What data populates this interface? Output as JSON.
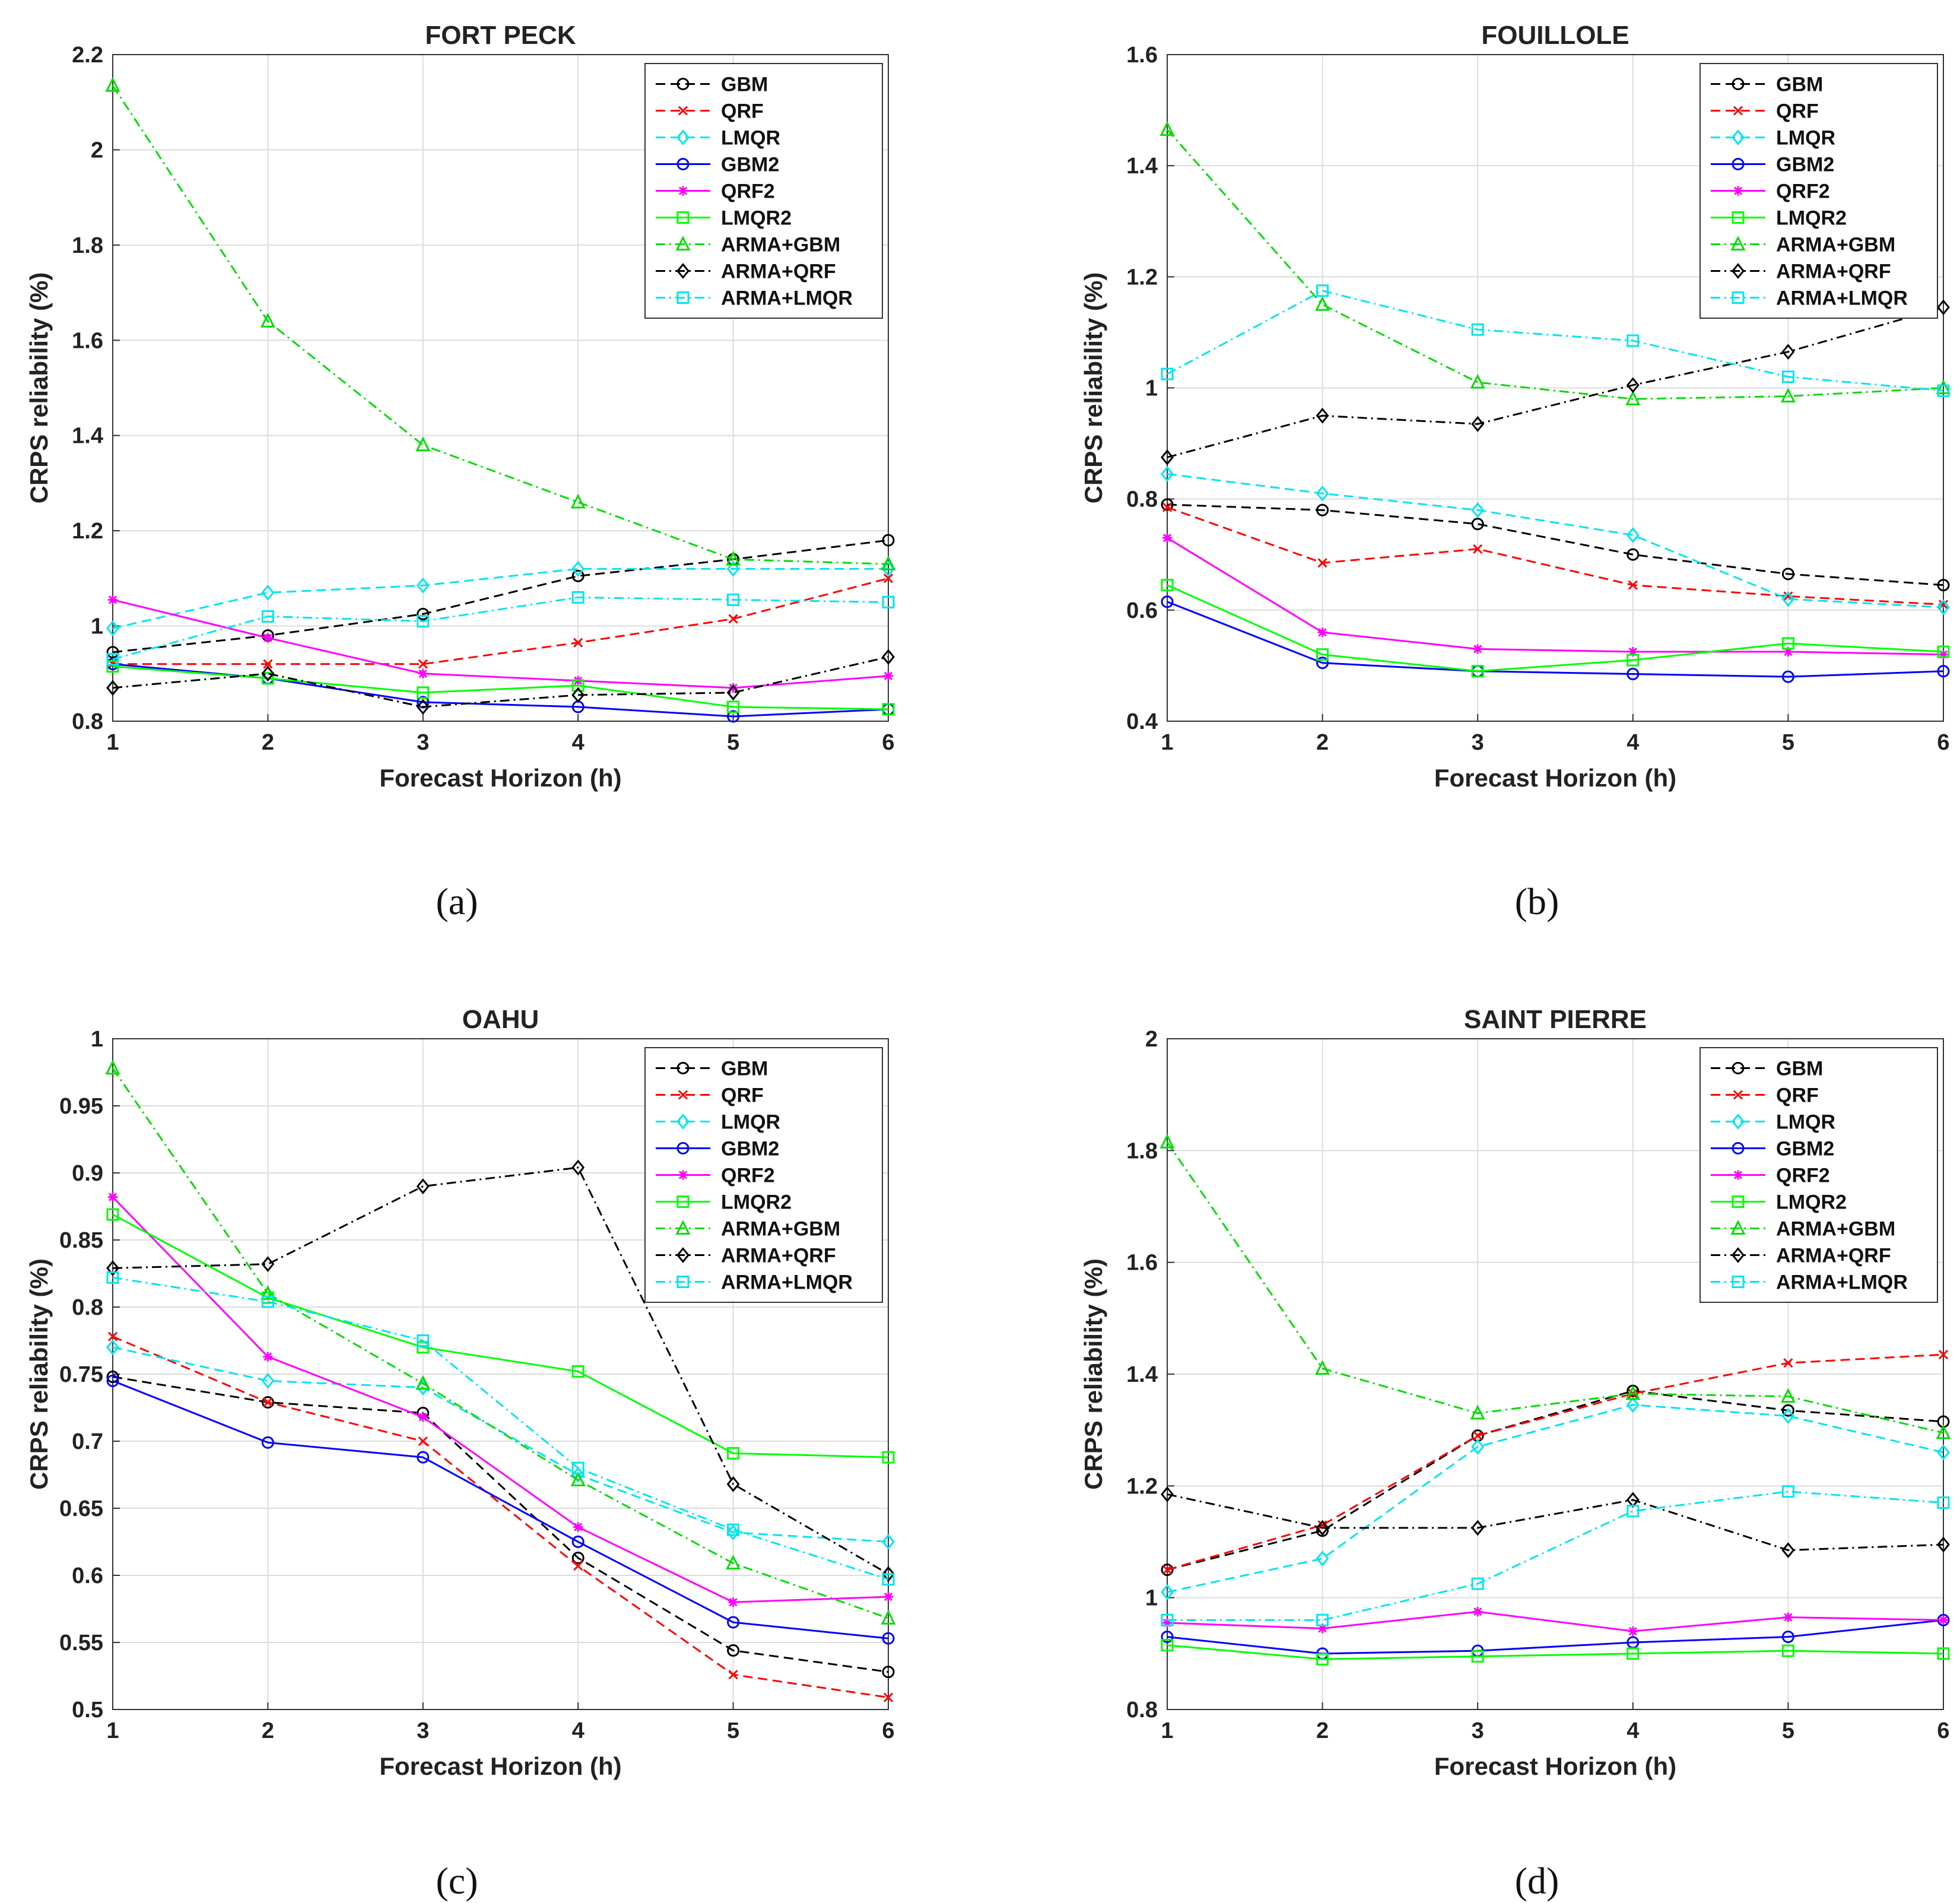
{
  "chart_data": [
    {
      "type": "line",
      "panel": "a",
      "title": "FORT PECK",
      "caption": "(a)",
      "xlabel": "Forecast Horizon (h)",
      "ylabel": "CRPS reliability (%)",
      "x": [
        1,
        2,
        3,
        4,
        5,
        6
      ],
      "xticks": [
        "1",
        "2",
        "3",
        "4",
        "5",
        "6"
      ],
      "ylim": [
        0.8,
        2.2
      ],
      "yticks": [
        "0.8",
        "1",
        "1.2",
        "1.4",
        "1.6",
        "1.8",
        "2",
        "2.2"
      ],
      "ytick_values": [
        0.8,
        1.0,
        1.2,
        1.4,
        1.6,
        1.8,
        2.0,
        2.2
      ],
      "legend_position": "top-right",
      "grid": true,
      "series": [
        {
          "name": "GBM",
          "color": "#000000",
          "dash": "dashed",
          "marker": "circle",
          "values": [
            0.945,
            0.98,
            1.025,
            1.105,
            1.14,
            1.18
          ]
        },
        {
          "name": "QRF",
          "color": "#ff0000",
          "dash": "dashed",
          "marker": "x",
          "values": [
            0.92,
            0.92,
            0.92,
            0.965,
            1.015,
            1.1
          ]
        },
        {
          "name": "LMQR",
          "color": "#00e5ee",
          "dash": "dashed",
          "marker": "diamond",
          "values": [
            0.995,
            1.07,
            1.085,
            1.12,
            1.12,
            1.12
          ]
        },
        {
          "name": "GBM2",
          "color": "#0000ff",
          "dash": "solid",
          "marker": "circle",
          "values": [
            0.92,
            0.89,
            0.84,
            0.83,
            0.81,
            0.825
          ]
        },
        {
          "name": "QRF2",
          "color": "#ff00ff",
          "dash": "solid",
          "marker": "asterisk",
          "values": [
            1.055,
            0.975,
            0.9,
            0.885,
            0.87,
            0.895
          ]
        },
        {
          "name": "LMQR2",
          "color": "#00ff00",
          "dash": "solid",
          "marker": "square",
          "values": [
            0.915,
            0.89,
            0.86,
            0.875,
            0.83,
            0.825
          ]
        },
        {
          "name": "ARMA+GBM",
          "color": "#00dd00",
          "dash": "dashdot",
          "marker": "triangle",
          "values": [
            2.135,
            1.64,
            1.38,
            1.26,
            1.14,
            1.13
          ]
        },
        {
          "name": "ARMA+QRF",
          "color": "#000000",
          "dash": "dashdot",
          "marker": "diamond",
          "values": [
            0.87,
            0.9,
            0.83,
            0.855,
            0.86,
            0.935
          ]
        },
        {
          "name": "ARMA+LMQR",
          "color": "#00e5ee",
          "dash": "dashdot",
          "marker": "square",
          "values": [
            0.93,
            1.02,
            1.01,
            1.06,
            1.055,
            1.05
          ]
        }
      ]
    },
    {
      "type": "line",
      "panel": "b",
      "title": "FOUILLOLE",
      "caption": "(b)",
      "xlabel": "Forecast Horizon (h)",
      "ylabel": "CRPS reliability (%)",
      "x": [
        1,
        2,
        3,
        4,
        5,
        6
      ],
      "xticks": [
        "1",
        "2",
        "3",
        "4",
        "5",
        "6"
      ],
      "ylim": [
        0.4,
        1.6
      ],
      "yticks": [
        "0.4",
        "0.6",
        "0.8",
        "1",
        "1.2",
        "1.4",
        "1.6"
      ],
      "ytick_values": [
        0.4,
        0.6,
        0.8,
        1.0,
        1.2,
        1.4,
        1.6
      ],
      "legend_position": "top-right",
      "grid": true,
      "series": [
        {
          "name": "GBM",
          "color": "#000000",
          "dash": "dashed",
          "marker": "circle",
          "values": [
            0.79,
            0.78,
            0.755,
            0.7,
            0.665,
            0.645
          ]
        },
        {
          "name": "QRF",
          "color": "#ff0000",
          "dash": "dashed",
          "marker": "x",
          "values": [
            0.785,
            0.685,
            0.71,
            0.645,
            0.625,
            0.61
          ]
        },
        {
          "name": "LMQR",
          "color": "#00e5ee",
          "dash": "dashed",
          "marker": "diamond",
          "values": [
            0.845,
            0.81,
            0.78,
            0.735,
            0.62,
            0.605
          ]
        },
        {
          "name": "GBM2",
          "color": "#0000ff",
          "dash": "solid",
          "marker": "circle",
          "values": [
            0.615,
            0.505,
            0.49,
            0.485,
            0.48,
            0.49
          ]
        },
        {
          "name": "QRF2",
          "color": "#ff00ff",
          "dash": "solid",
          "marker": "asterisk",
          "values": [
            0.73,
            0.56,
            0.53,
            0.525,
            0.525,
            0.52
          ]
        },
        {
          "name": "LMQR2",
          "color": "#00ff00",
          "dash": "solid",
          "marker": "square",
          "values": [
            0.645,
            0.52,
            0.49,
            0.51,
            0.54,
            0.525
          ]
        },
        {
          "name": "ARMA+GBM",
          "color": "#00dd00",
          "dash": "dashdot",
          "marker": "triangle",
          "values": [
            1.465,
            1.15,
            1.01,
            0.98,
            0.985,
            1.0
          ]
        },
        {
          "name": "ARMA+QRF",
          "color": "#000000",
          "dash": "dashdot",
          "marker": "diamond",
          "values": [
            0.875,
            0.95,
            0.935,
            1.005,
            1.065,
            1.145
          ]
        },
        {
          "name": "ARMA+LMQR",
          "color": "#00e5ee",
          "dash": "dashdot",
          "marker": "square",
          "values": [
            1.025,
            1.175,
            1.105,
            1.085,
            1.02,
            0.995
          ]
        }
      ]
    },
    {
      "type": "line",
      "panel": "c",
      "title": "OAHU",
      "caption": "(c)",
      "xlabel": "Forecast Horizon (h)",
      "ylabel": "CRPS reliability (%)",
      "x": [
        1,
        2,
        3,
        4,
        5,
        6
      ],
      "xticks": [
        "1",
        "2",
        "3",
        "4",
        "5",
        "6"
      ],
      "ylim": [
        0.5,
        1.0
      ],
      "yticks": [
        "0.5",
        "0.55",
        "0.6",
        "0.65",
        "0.7",
        "0.75",
        "0.8",
        "0.85",
        "0.9",
        "0.95",
        "1"
      ],
      "ytick_values": [
        0.5,
        0.55,
        0.6,
        0.65,
        0.7,
        0.75,
        0.8,
        0.85,
        0.9,
        0.95,
        1.0
      ],
      "legend_position": "top-right",
      "grid": true,
      "series": [
        {
          "name": "GBM",
          "color": "#000000",
          "dash": "dashed",
          "marker": "circle",
          "values": [
            0.748,
            0.729,
            0.721,
            0.613,
            0.544,
            0.528
          ]
        },
        {
          "name": "QRF",
          "color": "#ff0000",
          "dash": "dashed",
          "marker": "x",
          "values": [
            0.778,
            0.729,
            0.7,
            0.607,
            0.526,
            0.509
          ]
        },
        {
          "name": "LMQR",
          "color": "#00e5ee",
          "dash": "dashed",
          "marker": "diamond",
          "values": [
            0.77,
            0.745,
            0.74,
            0.675,
            0.632,
            0.625
          ]
        },
        {
          "name": "GBM2",
          "color": "#0000ff",
          "dash": "solid",
          "marker": "circle",
          "values": [
            0.745,
            0.699,
            0.688,
            0.625,
            0.565,
            0.553
          ]
        },
        {
          "name": "QRF2",
          "color": "#ff00ff",
          "dash": "solid",
          "marker": "asterisk",
          "values": [
            0.882,
            0.763,
            0.718,
            0.636,
            0.58,
            0.584
          ]
        },
        {
          "name": "LMQR2",
          "color": "#00ff00",
          "dash": "solid",
          "marker": "square",
          "values": [
            0.869,
            0.807,
            0.77,
            0.752,
            0.691,
            0.688
          ]
        },
        {
          "name": "ARMA+GBM",
          "color": "#00dd00",
          "dash": "dashdot",
          "marker": "triangle",
          "values": [
            0.978,
            0.81,
            0.743,
            0.671,
            0.609,
            0.568
          ]
        },
        {
          "name": "ARMA+QRF",
          "color": "#000000",
          "dash": "dashdot",
          "marker": "diamond",
          "values": [
            0.829,
            0.832,
            0.89,
            0.904,
            0.668,
            0.601
          ]
        },
        {
          "name": "ARMA+LMQR",
          "color": "#00e5ee",
          "dash": "dashdot",
          "marker": "square",
          "values": [
            0.822,
            0.804,
            0.775,
            0.68,
            0.634,
            0.597
          ]
        }
      ]
    },
    {
      "type": "line",
      "panel": "d",
      "title": "SAINT PIERRE",
      "caption": "(d)",
      "xlabel": "Forecast Horizon (h)",
      "ylabel": "CRPS reliability (%)",
      "x": [
        1,
        2,
        3,
        4,
        5,
        6
      ],
      "xticks": [
        "1",
        "2",
        "3",
        "4",
        "5",
        "6"
      ],
      "ylim": [
        0.8,
        2.0
      ],
      "yticks": [
        "0.8",
        "1",
        "1.2",
        "1.4",
        "1.6",
        "1.8",
        "2"
      ],
      "ytick_values": [
        0.8,
        1.0,
        1.2,
        1.4,
        1.6,
        1.8,
        2.0
      ],
      "legend_position": "top-right",
      "grid": true,
      "series": [
        {
          "name": "GBM",
          "color": "#000000",
          "dash": "dashed",
          "marker": "circle",
          "values": [
            1.05,
            1.12,
            1.29,
            1.37,
            1.335,
            1.315
          ]
        },
        {
          "name": "QRF",
          "color": "#ff0000",
          "dash": "dashed",
          "marker": "x",
          "values": [
            1.05,
            1.13,
            1.29,
            1.365,
            1.42,
            1.435
          ]
        },
        {
          "name": "LMQR",
          "color": "#00e5ee",
          "dash": "dashed",
          "marker": "diamond",
          "values": [
            1.01,
            1.07,
            1.27,
            1.345,
            1.325,
            1.26
          ]
        },
        {
          "name": "GBM2",
          "color": "#0000ff",
          "dash": "solid",
          "marker": "circle",
          "values": [
            0.93,
            0.9,
            0.905,
            0.92,
            0.93,
            0.96
          ]
        },
        {
          "name": "QRF2",
          "color": "#ff00ff",
          "dash": "solid",
          "marker": "asterisk",
          "values": [
            0.955,
            0.945,
            0.975,
            0.94,
            0.965,
            0.96
          ]
        },
        {
          "name": "LMQR2",
          "color": "#00ff00",
          "dash": "solid",
          "marker": "square",
          "values": [
            0.915,
            0.89,
            0.895,
            0.9,
            0.905,
            0.9
          ]
        },
        {
          "name": "ARMA+GBM",
          "color": "#00dd00",
          "dash": "dashdot",
          "marker": "triangle",
          "values": [
            1.815,
            1.41,
            1.33,
            1.365,
            1.36,
            1.295
          ]
        },
        {
          "name": "ARMA+QRF",
          "color": "#000000",
          "dash": "dashdot",
          "marker": "diamond",
          "values": [
            1.185,
            1.125,
            1.125,
            1.175,
            1.085,
            1.095
          ]
        },
        {
          "name": "ARMA+LMQR",
          "color": "#00e5ee",
          "dash": "dashdot",
          "marker": "square",
          "values": [
            0.96,
            0.96,
            1.025,
            1.155,
            1.19,
            1.17
          ]
        }
      ]
    }
  ]
}
